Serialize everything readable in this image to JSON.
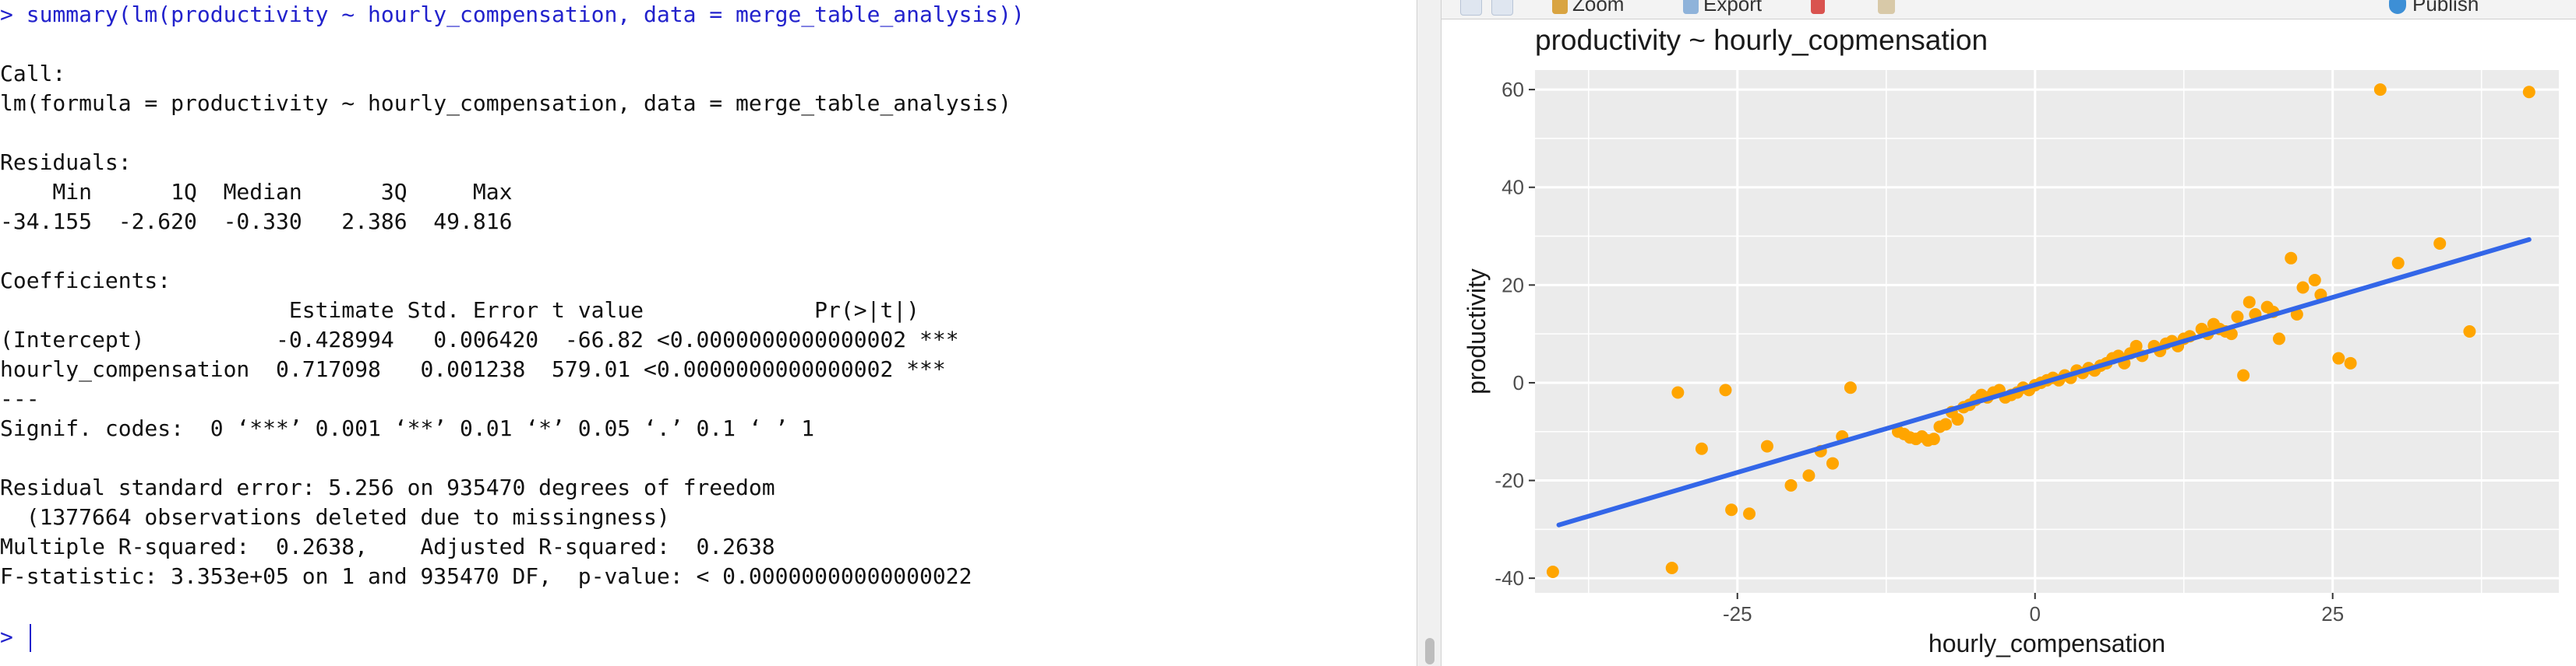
{
  "console": {
    "command_prompt": ">",
    "command": "summary(lm(productivity ~ hourly_compensation, data = merge_table_analysis))",
    "call_label": "Call:",
    "call_text": "lm(formula = productivity ~ hourly_compensation, data = merge_table_analysis)",
    "residuals_label": "Residuals:",
    "residuals_header": "    Min      1Q  Median      3Q     Max ",
    "residuals_values": "-34.155  -2.620  -0.330   2.386  49.816 ",
    "coefficients_label": "Coefficients:",
    "coef_header": "                      Estimate Std. Error t value             Pr(>|t|)    ",
    "coef_row1": "(Intercept)          -0.428994   0.006420  -66.82 <0.0000000000000002 ***",
    "coef_row2": "hourly_compensation  0.717098   0.001238  579.01 <0.0000000000000002 ***",
    "separator": "---",
    "signif_codes": "Signif. codes:  0 ‘***’ 0.001 ‘**’ 0.01 ‘*’ 0.05 ‘.’ 0.1 ‘ ’ 1",
    "rse_line": "Residual standard error: 5.256 on 935470 degrees of freedom",
    "deleted_line": "  (1377664 observations deleted due to missingness)",
    "rsq_line": "Multiple R-squared:  0.2638,\tAdjusted R-squared:  0.2638 ",
    "fstat_line": "F-statistic: 3.353e+05 on 1 and 935470 DF,  p-value: < 0.00000000000000022",
    "input_prompt": ">",
    "input_value": ""
  },
  "toolbar": {
    "zoom_label": "Zoom",
    "export_label": "Export",
    "publish_label": "Publish"
  },
  "colors": {
    "point": "#FFA500",
    "line": "#3366E8",
    "panel_bg": "#EBEBEB",
    "grid": "#FFFFFF",
    "command": "#2222CC"
  },
  "chart_data": {
    "type": "scatter",
    "title": "productivity ~ hourly_copmensation",
    "xlabel": "hourly_compensation",
    "ylabel": "productivity",
    "xlim": [
      -42,
      44
    ],
    "ylim": [
      -43,
      64
    ],
    "x_ticks": [
      -25,
      0,
      25
    ],
    "y_ticks": [
      -40,
      -20,
      0,
      20,
      40,
      60
    ],
    "grid": true,
    "legend": "none",
    "points": [
      {
        "x": -40.5,
        "y": -38.7
      },
      {
        "x": -30.5,
        "y": -37.9
      },
      {
        "x": -30.0,
        "y": -2.0
      },
      {
        "x": -28.0,
        "y": -13.5
      },
      {
        "x": -26.0,
        "y": -1.5
      },
      {
        "x": -25.5,
        "y": -26.0
      },
      {
        "x": -24.0,
        "y": -26.8
      },
      {
        "x": -22.5,
        "y": -13.0
      },
      {
        "x": -20.5,
        "y": -21.0
      },
      {
        "x": -19.0,
        "y": -19.0
      },
      {
        "x": -18.0,
        "y": -14.0
      },
      {
        "x": -17.0,
        "y": -16.5
      },
      {
        "x": -16.2,
        "y": -11.0
      },
      {
        "x": -15.5,
        "y": -1.0
      },
      {
        "x": -11.5,
        "y": -10.0
      },
      {
        "x": -11.0,
        "y": -10.5
      },
      {
        "x": -10.5,
        "y": -11.2
      },
      {
        "x": -10.0,
        "y": -11.5
      },
      {
        "x": -9.5,
        "y": -11.0
      },
      {
        "x": -9.0,
        "y": -11.8
      },
      {
        "x": -8.5,
        "y": -11.5
      },
      {
        "x": -8.0,
        "y": -9.0
      },
      {
        "x": -7.5,
        "y": -8.5
      },
      {
        "x": -7.0,
        "y": -6.0
      },
      {
        "x": -6.5,
        "y": -7.5
      },
      {
        "x": -6.0,
        "y": -5.0
      },
      {
        "x": -5.5,
        "y": -4.5
      },
      {
        "x": -5.0,
        "y": -3.5
      },
      {
        "x": -4.5,
        "y": -2.5
      },
      {
        "x": -4.0,
        "y": -3.0
      },
      {
        "x": -3.5,
        "y": -2.0
      },
      {
        "x": -3.0,
        "y": -1.5
      },
      {
        "x": -2.5,
        "y": -3.0
      },
      {
        "x": -2.0,
        "y": -2.5
      },
      {
        "x": -1.5,
        "y": -2.0
      },
      {
        "x": -1.0,
        "y": -1.0
      },
      {
        "x": -0.5,
        "y": -1.5
      },
      {
        "x": 0.0,
        "y": -0.5
      },
      {
        "x": 0.5,
        "y": 0.0
      },
      {
        "x": 1.0,
        "y": 0.5
      },
      {
        "x": 1.5,
        "y": 1.0
      },
      {
        "x": 2.0,
        "y": 0.5
      },
      {
        "x": 2.5,
        "y": 1.5
      },
      {
        "x": 3.0,
        "y": 1.0
      },
      {
        "x": 3.5,
        "y": 2.5
      },
      {
        "x": 4.0,
        "y": 2.0
      },
      {
        "x": 4.5,
        "y": 3.0
      },
      {
        "x": 5.0,
        "y": 2.5
      },
      {
        "x": 5.5,
        "y": 3.5
      },
      {
        "x": 6.0,
        "y": 4.0
      },
      {
        "x": 6.5,
        "y": 5.0
      },
      {
        "x": 7.0,
        "y": 5.5
      },
      {
        "x": 7.5,
        "y": 4.0
      },
      {
        "x": 8.0,
        "y": 6.0
      },
      {
        "x": 8.5,
        "y": 7.5
      },
      {
        "x": 9.0,
        "y": 5.5
      },
      {
        "x": 10.0,
        "y": 7.5
      },
      {
        "x": 10.5,
        "y": 6.5
      },
      {
        "x": 11.0,
        "y": 8.0
      },
      {
        "x": 11.5,
        "y": 8.5
      },
      {
        "x": 12.0,
        "y": 7.5
      },
      {
        "x": 12.5,
        "y": 9.0
      },
      {
        "x": 13.0,
        "y": 9.5
      },
      {
        "x": 14.0,
        "y": 11.0
      },
      {
        "x": 14.5,
        "y": 10.0
      },
      {
        "x": 15.0,
        "y": 12.0
      },
      {
        "x": 15.5,
        "y": 11.0
      },
      {
        "x": 16.0,
        "y": 10.5
      },
      {
        "x": 16.5,
        "y": 10.0
      },
      {
        "x": 17.0,
        "y": 13.5
      },
      {
        "x": 17.5,
        "y": 1.5
      },
      {
        "x": 18.0,
        "y": 16.5
      },
      {
        "x": 18.5,
        "y": 14.0
      },
      {
        "x": 19.5,
        "y": 15.5
      },
      {
        "x": 20.0,
        "y": 14.5
      },
      {
        "x": 20.5,
        "y": 9.0
      },
      {
        "x": 21.5,
        "y": 25.5
      },
      {
        "x": 22.0,
        "y": 14.0
      },
      {
        "x": 22.5,
        "y": 19.5
      },
      {
        "x": 23.5,
        "y": 21.0
      },
      {
        "x": 24.0,
        "y": 18.0
      },
      {
        "x": 25.5,
        "y": 5.0
      },
      {
        "x": 26.5,
        "y": 4.0
      },
      {
        "x": 29.0,
        "y": 60.0
      },
      {
        "x": 30.5,
        "y": 24.5
      },
      {
        "x": 34.0,
        "y": 28.5
      },
      {
        "x": 36.5,
        "y": 10.5
      },
      {
        "x": 41.5,
        "y": 59.5
      }
    ],
    "fit_line": {
      "x": [
        -40.0,
        41.5
      ],
      "y": [
        -29.1,
        29.3
      ]
    }
  }
}
